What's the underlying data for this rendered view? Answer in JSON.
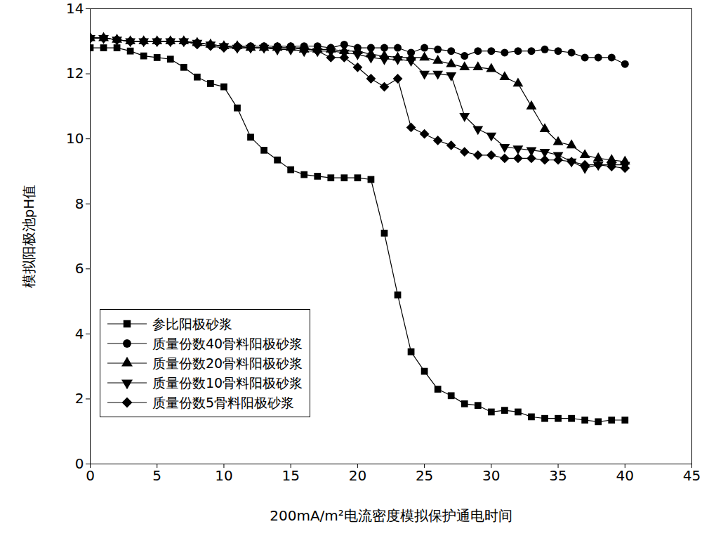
{
  "chart_data": {
    "type": "line",
    "x_label": "200mA/m²电流密度模拟保护通电时间",
    "y_label": "模拟阳极池pH值",
    "x": [
      0,
      1,
      2,
      3,
      4,
      5,
      6,
      7,
      8,
      9,
      10,
      11,
      12,
      13,
      14,
      15,
      16,
      17,
      18,
      19,
      20,
      21,
      22,
      23,
      24,
      25,
      26,
      27,
      28,
      29,
      30,
      31,
      32,
      33,
      34,
      35,
      36,
      37,
      38,
      39,
      40
    ],
    "xlim": [
      0,
      45
    ],
    "xticks": [
      0,
      5,
      10,
      15,
      20,
      25,
      30,
      35,
      40,
      45
    ],
    "ylim": [
      0,
      14
    ],
    "yticks": [
      0,
      2,
      4,
      6,
      8,
      10,
      12,
      14
    ],
    "grid": false,
    "legend": "left",
    "series": [
      {
        "name": "参比阳极砂浆",
        "color": "#000000",
        "marker": "square",
        "line_style": "solid",
        "values": [
          12.8,
          12.8,
          12.8,
          12.7,
          12.55,
          12.5,
          12.45,
          12.2,
          11.9,
          11.7,
          11.6,
          10.95,
          10.05,
          9.65,
          9.35,
          9.05,
          8.9,
          8.85,
          8.8,
          8.8,
          8.8,
          8.75,
          7.1,
          5.2,
          3.45,
          2.85,
          2.3,
          2.1,
          1.85,
          1.8,
          1.6,
          1.65,
          1.6,
          1.45,
          1.4,
          1.4,
          1.4,
          1.35,
          1.3,
          1.35,
          1.35
        ]
      },
      {
        "name": "质量份数40骨料阳极砂浆",
        "color": "#000000",
        "marker": "circle",
        "line_style": "solid",
        "values": [
          13.1,
          13.1,
          13.05,
          13.0,
          13.0,
          13.0,
          13.0,
          13.0,
          12.95,
          12.9,
          12.85,
          12.85,
          12.85,
          12.85,
          12.85,
          12.85,
          12.85,
          12.85,
          12.8,
          12.9,
          12.8,
          12.8,
          12.8,
          12.8,
          12.65,
          12.8,
          12.75,
          12.7,
          12.55,
          12.7,
          12.7,
          12.65,
          12.7,
          12.7,
          12.75,
          12.7,
          12.65,
          12.5,
          12.5,
          12.5,
          12.3
        ]
      },
      {
        "name": "质量份数20骨料阳极砂浆",
        "color": "#000000",
        "marker": "triangle",
        "line_style": "solid",
        "values": [
          13.1,
          13.1,
          13.05,
          13.0,
          13.0,
          13.0,
          13.0,
          13.0,
          12.95,
          12.9,
          12.85,
          12.85,
          12.8,
          12.8,
          12.8,
          12.8,
          12.75,
          12.75,
          12.75,
          12.7,
          12.7,
          12.6,
          12.55,
          12.5,
          12.5,
          12.5,
          12.4,
          12.3,
          12.2,
          12.2,
          12.15,
          11.9,
          11.7,
          11.0,
          10.3,
          9.9,
          9.8,
          9.5,
          9.4,
          9.35,
          9.3
        ]
      },
      {
        "name": "质量份数10骨料阳极砂浆",
        "color": "#000000",
        "marker": "triangle-down",
        "line_style": "solid",
        "values": [
          13.1,
          13.1,
          13.05,
          13.0,
          13.0,
          13.0,
          13.0,
          13.0,
          12.95,
          12.9,
          12.85,
          12.8,
          12.8,
          12.8,
          12.75,
          12.75,
          12.7,
          12.7,
          12.7,
          12.65,
          12.6,
          12.5,
          12.45,
          12.45,
          12.4,
          12.0,
          12.0,
          11.95,
          10.7,
          10.3,
          10.1,
          9.75,
          9.7,
          9.65,
          9.6,
          9.5,
          9.3,
          9.1,
          9.2,
          9.2,
          9.2
        ]
      },
      {
        "name": "质量份数5骨料阳极砂浆",
        "color": "#000000",
        "marker": "diamond",
        "line_style": "solid",
        "values": [
          13.1,
          13.1,
          13.05,
          13.0,
          13.0,
          13.0,
          13.0,
          13.0,
          12.9,
          12.85,
          12.8,
          12.8,
          12.8,
          12.8,
          12.8,
          12.8,
          12.8,
          12.7,
          12.5,
          12.5,
          12.2,
          11.85,
          11.6,
          11.85,
          10.35,
          10.15,
          9.95,
          9.8,
          9.6,
          9.5,
          9.5,
          9.4,
          9.4,
          9.4,
          9.35,
          9.35,
          9.3,
          9.2,
          9.2,
          9.15,
          9.1
        ]
      }
    ]
  }
}
